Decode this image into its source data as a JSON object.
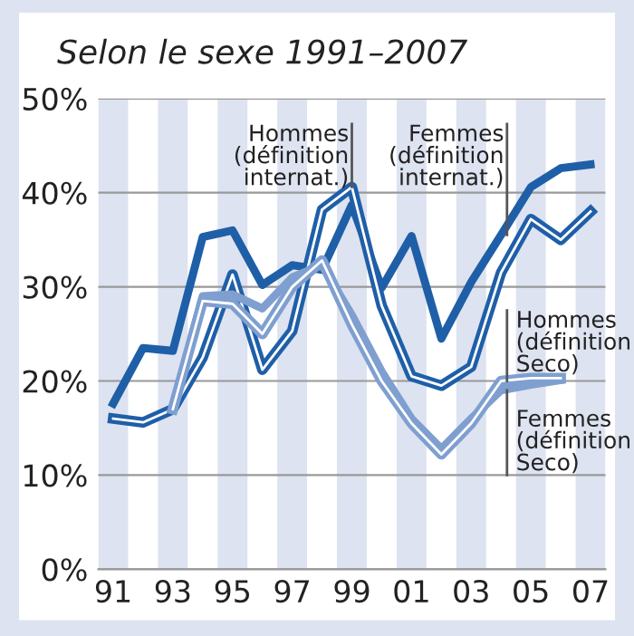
{
  "chart_data": {
    "type": "line",
    "title": "Selon le sexe 1991–2007",
    "x": [
      1991,
      1992,
      1993,
      1994,
      1995,
      1996,
      1997,
      1998,
      1999,
      2000,
      2001,
      2002,
      2003,
      2004,
      2005,
      2006,
      2007
    ],
    "series": [
      {
        "name": "Femmes (définition internat.)",
        "color": "#1f5fa8",
        "values": [
          17.6,
          23.5,
          23.2,
          35.3,
          36.0,
          30.2,
          32.3,
          31.8,
          38.7,
          29.9,
          35.4,
          24.5,
          30.5,
          35.5,
          40.6,
          42.6,
          43.0
        ]
      },
      {
        "name": "Hommes (définition internat.)",
        "color": "#1f5fa8",
        "values": [
          16.0,
          15.6,
          17.0,
          22.5,
          31.3,
          21.2,
          25.3,
          38.2,
          40.6,
          28.0,
          20.5,
          19.5,
          21.5,
          31.5,
          37.2,
          35.0,
          38.0
        ]
      },
      {
        "name": "Femmes (définition Seco)",
        "color": "#7f9fd0",
        "values": [
          null,
          null,
          17.0,
          29.0,
          29.2,
          27.7,
          31.0,
          32.3,
          27.0,
          21.0,
          16.0,
          12.8,
          16.0,
          19.0,
          19.6,
          20.1,
          null
        ]
      },
      {
        "name": "Hommes (définition Seco)",
        "color": "#7f9fd0",
        "values": [
          null,
          null,
          17.0,
          28.5,
          28.2,
          25.0,
          30.0,
          32.8,
          26.0,
          20.0,
          15.5,
          12.2,
          15.5,
          20.0,
          20.3,
          20.3,
          null
        ]
      }
    ],
    "xlim": [
      1990.5,
      2007.5
    ],
    "xticks": [
      {
        "value": 1991,
        "label": "91"
      },
      {
        "value": 1993,
        "label": "93"
      },
      {
        "value": 1995,
        "label": "95"
      },
      {
        "value": 1997,
        "label": "97"
      },
      {
        "value": 1999,
        "label": "99"
      },
      {
        "value": 2001,
        "label": "01"
      },
      {
        "value": 2003,
        "label": "03"
      },
      {
        "value": 2005,
        "label": "05"
      },
      {
        "value": 2007,
        "label": "07"
      }
    ],
    "ylim": [
      0,
      50
    ],
    "yticks": [
      {
        "value": 0,
        "label": "0%"
      },
      {
        "value": 10,
        "label": "10%"
      },
      {
        "value": 20,
        "label": "20%"
      },
      {
        "value": 30,
        "label": "30%"
      },
      {
        "value": 40,
        "label": "40%"
      },
      {
        "value": 50,
        "label": "50%"
      }
    ],
    "grid": "y",
    "bands": [
      {
        "axis": "x",
        "from": 1990.5,
        "to": 1991.5,
        "color": "#dde3f0"
      },
      {
        "axis": "x",
        "from": 1992.5,
        "to": 1993.5,
        "color": "#dde3f0"
      },
      {
        "axis": "x",
        "from": 1994.5,
        "to": 1995.5,
        "color": "#dde3f0"
      },
      {
        "axis": "x",
        "from": 1996.5,
        "to": 1997.5,
        "color": "#dde3f0"
      },
      {
        "axis": "x",
        "from": 1998.5,
        "to": 1999.5,
        "color": "#dde3f0"
      },
      {
        "axis": "x",
        "from": 2000.5,
        "to": 2001.5,
        "color": "#dde3f0"
      },
      {
        "axis": "x",
        "from": 2002.5,
        "to": 2003.5,
        "color": "#dde3f0"
      },
      {
        "axis": "x",
        "from": 2004.5,
        "to": 2005.5,
        "color": "#dde3f0"
      },
      {
        "axis": "x",
        "from": 2006.5,
        "to": 2007.5,
        "color": "#dde3f0"
      }
    ]
  }
}
